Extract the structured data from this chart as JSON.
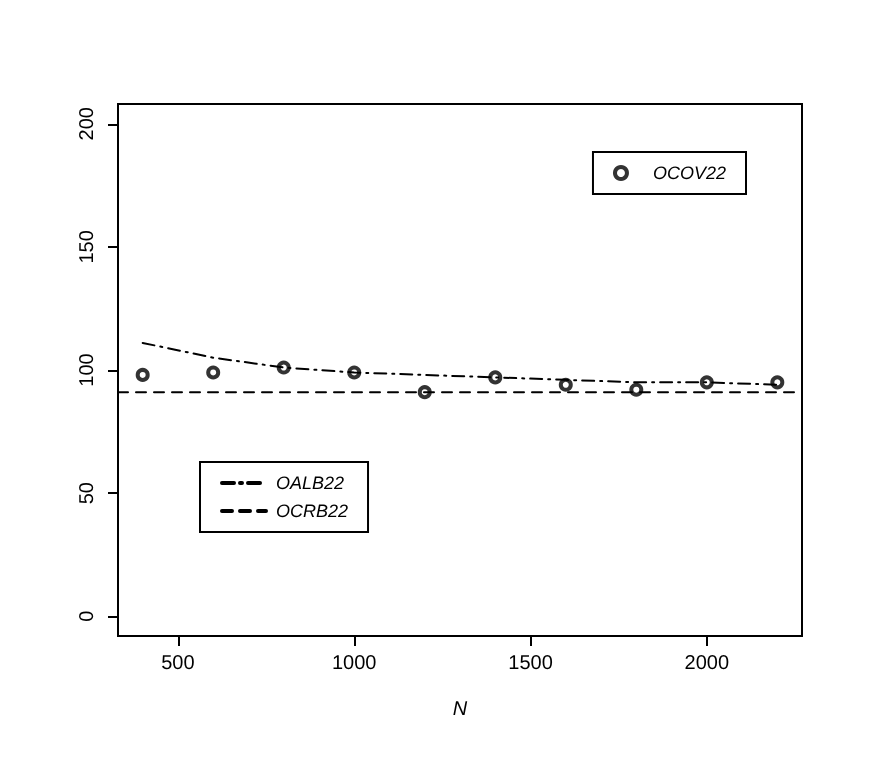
{
  "chart_data": {
    "type": "scatter",
    "xlabel": "N",
    "x": [
      400,
      600,
      800,
      1000,
      1200,
      1400,
      1600,
      1800,
      2000,
      2200
    ],
    "series": [
      {
        "name": "OCOV22",
        "color": "#000000",
        "marker": "circle",
        "values": [
          98,
          99,
          101,
          99,
          91,
          97,
          94,
          92,
          95,
          95
        ]
      },
      {
        "name": "OALB22",
        "type": "line",
        "color": "#000000",
        "marker": "none",
        "line_style": "dashdot",
        "values": [
          111,
          105,
          101,
          99,
          98,
          97,
          96,
          95,
          95,
          94
        ]
      },
      {
        "name": "OCRB22",
        "type": "line",
        "color": "#000000",
        "marker": "none",
        "line_style": "dashed",
        "x": [
          330,
          2270
        ],
        "values": [
          91,
          91
        ]
      }
    ],
    "xlim": [
      330,
      2270
    ],
    "xticks": [
      500,
      1000,
      1500,
      2000
    ],
    "ylim": [
      -8,
      208
    ],
    "yticks": [
      0,
      50,
      100,
      150,
      200
    ],
    "grid": false,
    "legend": "top right"
  }
}
